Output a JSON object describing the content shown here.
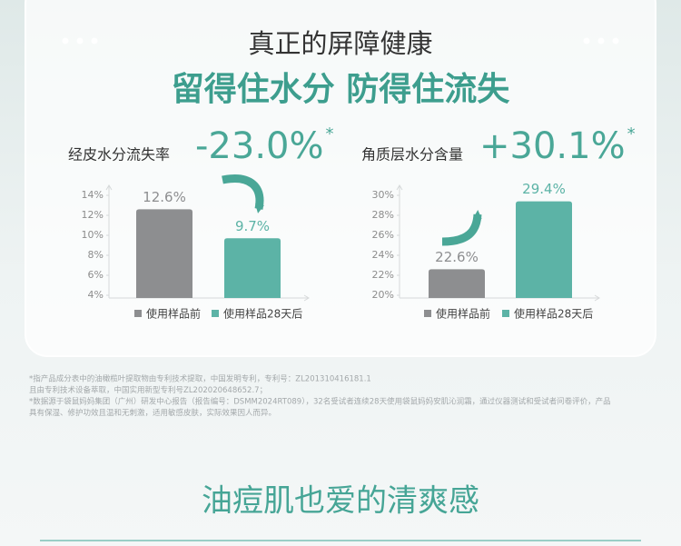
{
  "header": {
    "title": "真正的屏障健康",
    "headline": "留得住水分 防得住流失"
  },
  "chart_data": [
    {
      "type": "bar",
      "title": "经皮水分流失率",
      "annotation": "-23.0%",
      "annotation_mark": "*",
      "categories": [
        "使用样品前",
        "使用样品28天后"
      ],
      "values": [
        12.6,
        9.7
      ],
      "value_labels": [
        "12.6%",
        "9.7%"
      ],
      "colors": [
        "#8d8e90",
        "#5cb3a6"
      ],
      "ylim": [
        4,
        15
      ],
      "yticks": [
        {
          "value": 4,
          "label": "4%"
        },
        {
          "value": 6,
          "label": "6%"
        },
        {
          "value": 8,
          "label": "8%"
        },
        {
          "value": 10,
          "label": "10%"
        },
        {
          "value": 12,
          "label": "12%"
        },
        {
          "value": 14,
          "label": "14%"
        }
      ]
    },
    {
      "type": "bar",
      "title": "角质层水分含量",
      "annotation": "+30.1%",
      "annotation_mark": "*",
      "categories": [
        "使用样品前",
        "使用样品28天后"
      ],
      "values": [
        22.6,
        29.4
      ],
      "value_labels": [
        "22.6%",
        "29.4%"
      ],
      "colors": [
        "#8d8e90",
        "#5cb3a6"
      ],
      "ylim": [
        20,
        31
      ],
      "yticks": [
        {
          "value": 20,
          "label": "20%"
        },
        {
          "value": 22,
          "label": "22%"
        },
        {
          "value": 24,
          "label": "24%"
        },
        {
          "value": 26,
          "label": "26%"
        },
        {
          "value": 28,
          "label": "28%"
        },
        {
          "value": 30,
          "label": "30%"
        }
      ]
    }
  ],
  "footnotes": [
    "*指产品成分表中的油橄榄叶提取物由专利技术提取，中国发明专利，专利号：ZL201310416181.1",
    "且由专利技术设备萃取，中国实用新型专利号ZL202020648652.7；",
    "*数据源于袋鼠妈妈集团（广州）研发中心报告（报告编号：DSMM2024RT089），32名受试者连续28天使用袋鼠妈妈安肌沁润霜，通过仪器测试和受试者问卷评价，产品",
    "具有保湿、修护功效且温和无刺激，适用敏感皮肤，实际效果因人而异。"
  ],
  "section_title": "油痘肌也爱的清爽感"
}
